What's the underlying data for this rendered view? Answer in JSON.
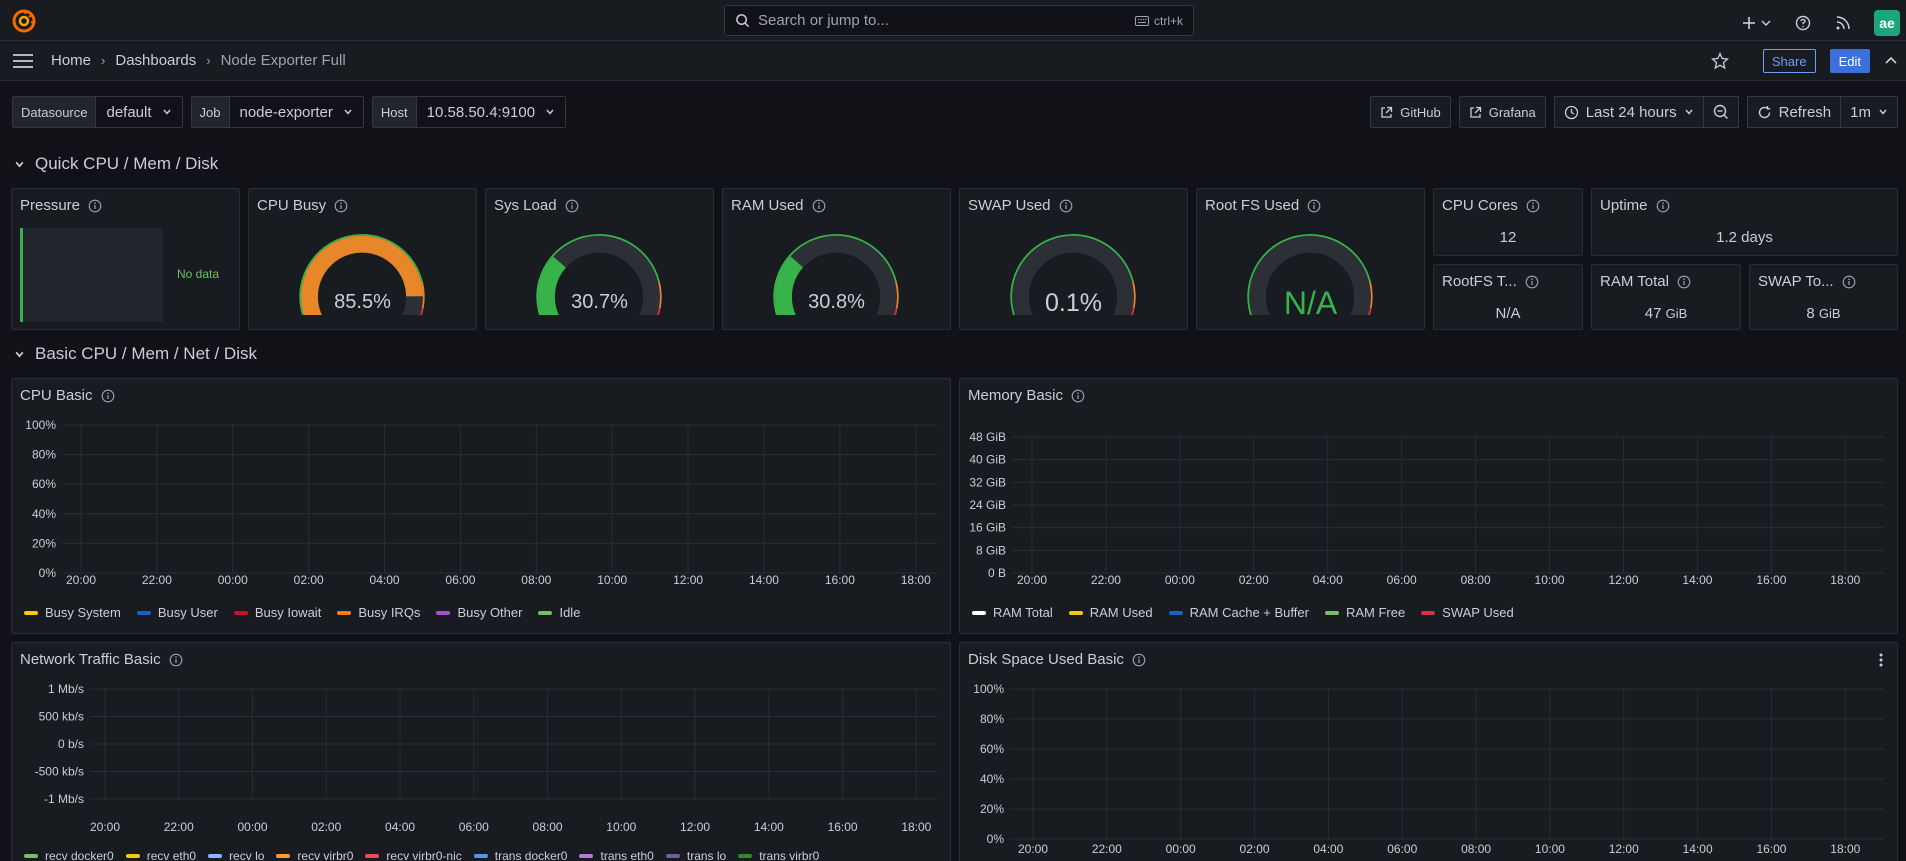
{
  "search": {
    "placeholder": "Search or jump to...",
    "shortcut": "ctrl+k"
  },
  "avatar": {
    "initials": "ae"
  },
  "breadcrumb": {
    "home": "Home",
    "dashboards": "Dashboards",
    "current": "Node Exporter Full"
  },
  "nav": {
    "share": "Share",
    "edit": "Edit"
  },
  "variables": [
    {
      "label": "Datasource",
      "value": "default"
    },
    {
      "label": "Job",
      "value": "node-exporter"
    },
    {
      "label": "Host",
      "value": "10.58.50.4:9100"
    }
  ],
  "toolbar": {
    "github": "GitHub",
    "grafana": "Grafana",
    "time_range": "Last 24 hours",
    "refresh": "Refresh",
    "interval": "1m"
  },
  "rows": {
    "quick": "Quick CPU / Mem / Disk",
    "basic": "Basic CPU / Mem / Net / Disk"
  },
  "panels": {
    "pressure": {
      "title": "Pressure",
      "value": "No data"
    },
    "cpu_busy": {
      "title": "CPU Busy",
      "value": "85.5%",
      "level": 0.855,
      "color": "#e8872a"
    },
    "sys_load": {
      "title": "Sys Load",
      "value": "30.7%",
      "level": 0.307,
      "color": "#37b349"
    },
    "ram_used": {
      "title": "RAM Used",
      "value": "30.8%",
      "level": 0.308,
      "color": "#37b349"
    },
    "swap_used": {
      "title": "SWAP Used",
      "value": "0.1%",
      "level": 0.001,
      "color": "#37b349"
    },
    "rootfs_used": {
      "title": "Root FS Used",
      "value": "N/A",
      "level": 0,
      "color": "#37b349"
    },
    "cpu_cores": {
      "title": "CPU Cores",
      "value": "12"
    },
    "uptime": {
      "title": "Uptime",
      "value": "1.2 days"
    },
    "rootfs_total": {
      "title": "RootFS T...",
      "value": "N/A"
    },
    "ram_total": {
      "title": "RAM Total",
      "value": "47",
      "unit": "GiB"
    },
    "swap_total": {
      "title": "SWAP To...",
      "value": "8",
      "unit": "GiB"
    },
    "cpu_basic": {
      "title": "CPU Basic"
    },
    "memory_basic": {
      "title": "Memory Basic"
    },
    "network_basic": {
      "title": "Network Traffic Basic"
    },
    "disk_basic": {
      "title": "Disk Space Used Basic"
    }
  },
  "time_axis": [
    "20:00",
    "22:00",
    "00:00",
    "02:00",
    "04:00",
    "06:00",
    "08:00",
    "10:00",
    "12:00",
    "14:00",
    "16:00",
    "18:00"
  ],
  "chart_data": [
    {
      "type": "line",
      "name": "CPU Basic",
      "y_ticks": [
        "100%",
        "80%",
        "60%",
        "40%",
        "20%",
        "0%"
      ],
      "series": [
        {
          "name": "Busy System",
          "color": "#f2cc0c"
        },
        {
          "name": "Busy User",
          "color": "#1f60c4"
        },
        {
          "name": "Busy Iowait",
          "color": "#c4162a"
        },
        {
          "name": "Busy IRQs",
          "color": "#ff780a"
        },
        {
          "name": "Busy Other",
          "color": "#a352cc"
        },
        {
          "name": "Idle",
          "color": "#73bf69"
        }
      ]
    },
    {
      "type": "line",
      "name": "Memory Basic",
      "y_ticks": [
        "48 GiB",
        "40 GiB",
        "32 GiB",
        "24 GiB",
        "16 GiB",
        "8 GiB",
        "0 B"
      ],
      "series": [
        {
          "name": "RAM Total",
          "color": "#ffffff"
        },
        {
          "name": "RAM Used",
          "color": "#f2cc0c"
        },
        {
          "name": "RAM Cache + Buffer",
          "color": "#1f60c4"
        },
        {
          "name": "RAM Free",
          "color": "#73bf69"
        },
        {
          "name": "SWAP Used",
          "color": "#e02f44"
        }
      ]
    },
    {
      "type": "line",
      "name": "Network Traffic Basic",
      "y_ticks": [
        "1 Mb/s",
        "500 kb/s",
        "0 b/s",
        "-500 kb/s",
        "-1 Mb/s"
      ],
      "series": [
        {
          "name": "recv docker0",
          "color": "#73bf69"
        },
        {
          "name": "recv eth0",
          "color": "#f2cc0c"
        },
        {
          "name": "recv lo",
          "color": "#8ab8ff"
        },
        {
          "name": "recv virbr0",
          "color": "#ff9830"
        },
        {
          "name": "recv virbr0-nic",
          "color": "#f2495c"
        },
        {
          "name": "trans docker0",
          "color": "#5794f2"
        },
        {
          "name": "trans eth0",
          "color": "#b877d9"
        },
        {
          "name": "trans lo",
          "color": "#705da0"
        },
        {
          "name": "trans virbr0",
          "color": "#37872d"
        }
      ]
    },
    {
      "type": "line",
      "name": "Disk Space Used Basic",
      "y_ticks": [
        "100%",
        "80%",
        "60%",
        "40%",
        "20%",
        "0%"
      ],
      "series": []
    }
  ]
}
